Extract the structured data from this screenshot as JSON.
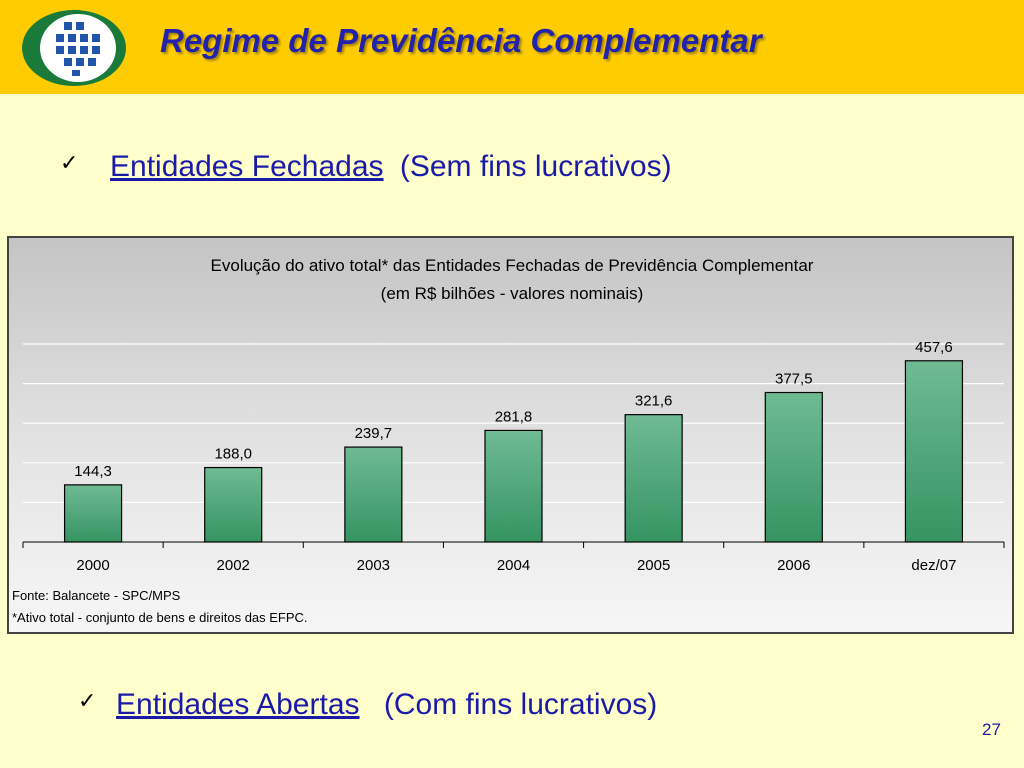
{
  "header": {
    "title": "Regime de Previdência Complementar"
  },
  "logo": {
    "icon": "previdencia-logo-icon",
    "colors": [
      "#1a7a3a",
      "#2255aa"
    ]
  },
  "bullet_fechadas": {
    "label": "Entidades Fechadas",
    "note": "(Sem fins lucrativos)"
  },
  "bullet_abertas": {
    "label": "Entidades Abertas",
    "note": "(Com fins lucrativos)"
  },
  "page_number": "27",
  "colors": {
    "header_bg": "#ffcc00",
    "page_bg": "#ffffcc",
    "text": "#1a1aa8",
    "bar": "#3d9a68"
  },
  "chart_data": {
    "type": "bar",
    "title": "Evolução do ativo total* das Entidades Fechadas de Previdência Complementar",
    "subtitle": "(em R$ bilhões - valores nominais)",
    "categories": [
      "2000",
      "2002",
      "2003",
      "2004",
      "2005",
      "2006",
      "dez/07"
    ],
    "values": [
      144.3,
      188.0,
      239.7,
      281.8,
      321.6,
      377.5,
      457.6
    ],
    "data_labels": [
      "144,3",
      "188,0",
      "239,7",
      "281,8",
      "321,6",
      "377,5",
      "457,6"
    ],
    "ylim": [
      0,
      500
    ],
    "grid": true,
    "footnotes": [
      "Fonte: Balancete - SPC/MPS",
      "*Ativo total - conjunto de bens e direitos das EFPC."
    ]
  }
}
